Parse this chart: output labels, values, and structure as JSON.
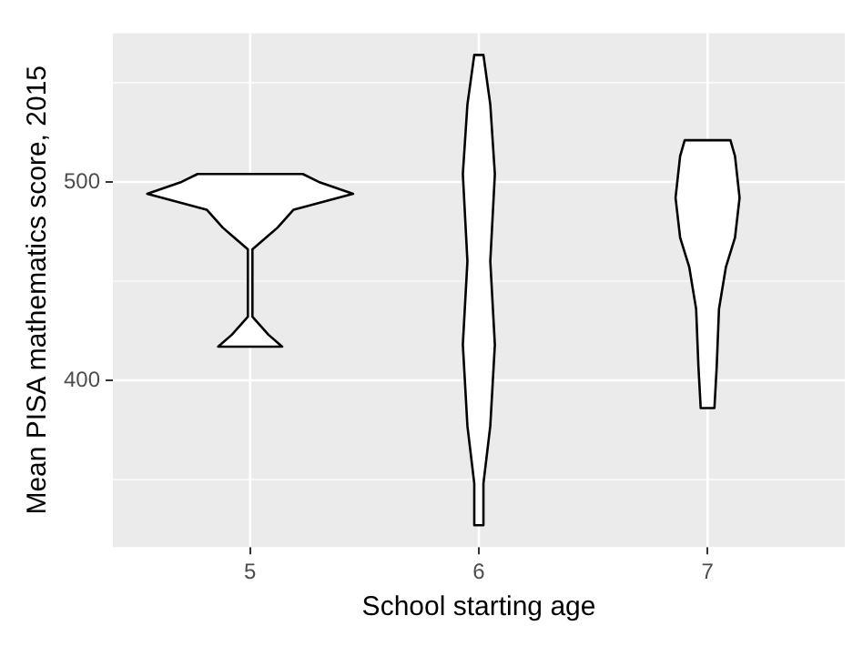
{
  "chart_data": {
    "type": "area",
    "xlabel": "School starting age",
    "ylabel": "Mean PISA mathematics score, 2015",
    "xlim": [
      4.4,
      7.6
    ],
    "xticks": [
      5,
      6,
      7
    ],
    "ylim": [
      316,
      575
    ],
    "yticks": [
      400,
      500
    ],
    "grid": true,
    "marker": "none",
    "line_style": "solid",
    "series": [
      {
        "color": "#000000",
        "x": [
          5.14,
          5.08,
          5.01,
          5.01,
          5.12,
          5.19,
          5.45,
          5.3,
          5.23,
          4.77,
          4.7,
          4.55,
          4.81,
          4.88,
          4.99,
          4.99,
          4.92,
          4.86,
          5.14
        ],
        "values": [
          417,
          423,
          432,
          466,
          477,
          486,
          494,
          500,
          504,
          504,
          500,
          494,
          486,
          477,
          466,
          432,
          423,
          417,
          417
        ]
      },
      {
        "color": "#000000",
        "x": [
          6.02,
          6.02,
          6.05,
          6.07,
          6.05,
          6.07,
          6.05,
          6.02,
          5.98,
          5.95,
          5.93,
          5.95,
          5.93,
          5.95,
          5.98,
          5.98,
          6.02
        ],
        "values": [
          327,
          348,
          377,
          418,
          460,
          504,
          539,
          564,
          564,
          539,
          504,
          460,
          418,
          377,
          348,
          327,
          327
        ]
      },
      {
        "color": "#000000",
        "x": [
          7.03,
          7.04,
          7.05,
          7.08,
          7.12,
          7.14,
          7.12,
          7.1,
          6.9,
          6.88,
          6.86,
          6.88,
          6.92,
          6.95,
          6.96,
          6.97,
          7.03
        ],
        "values": [
          386,
          407,
          436,
          457,
          472,
          492,
          513,
          521,
          521,
          513,
          492,
          472,
          457,
          436,
          407,
          386,
          386
        ]
      }
    ]
  }
}
